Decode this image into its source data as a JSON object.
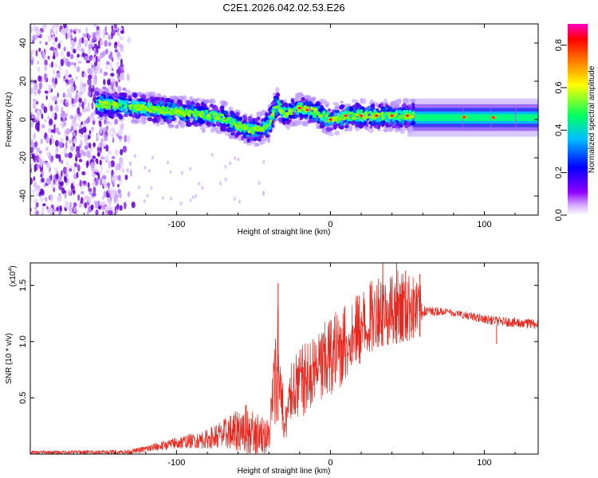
{
  "title": "C2E1.2026.042.02.53.E26",
  "chart_data": [
    {
      "type": "heatmap",
      "name": "spectrogram",
      "xlabel": "Height of straight line (km)",
      "ylabel": "Frequency (Hz)",
      "xlim": [
        -195,
        135
      ],
      "ylim": [
        -50,
        50
      ],
      "x_ticks": [
        -100,
        0,
        100
      ],
      "y_ticks": [
        -40,
        -20,
        0,
        20,
        40
      ],
      "colorbar": {
        "label": "Normalized spectral amplitude",
        "range": [
          0,
          0.9
        ],
        "ticks": [
          0.0,
          0.2,
          0.4,
          0.6,
          0.8
        ],
        "colormap": [
          "#ffffff",
          "#9000ff",
          "#0000ff",
          "#00c0ff",
          "#00ff60",
          "#ffff00",
          "#ff8000",
          "#ff0000",
          "#ff00c0"
        ]
      },
      "noise_region_x": [
        -195,
        -135
      ],
      "band_start_x": 50,
      "band_freq_hz": 1,
      "ridge": {
        "x": [
          -150,
          -130,
          -110,
          -90,
          -70,
          -60,
          -50,
          -40,
          -35,
          -30,
          -20,
          -10,
          0,
          10,
          30,
          50,
          100,
          135
        ],
        "y": [
          8,
          7,
          5,
          3,
          1,
          -3,
          -6,
          -3,
          8,
          3,
          6,
          4,
          0,
          2,
          2,
          2,
          1,
          1
        ]
      },
      "peaks_x": [
        -20,
        -15,
        0,
        10,
        20,
        30,
        40,
        50,
        87,
        106
      ]
    },
    {
      "type": "line",
      "name": "snr",
      "xlabel": "Height of straight line (km)",
      "ylabel": "SNR (10 * v/v)",
      "y_multiplier": "(x10",
      "y_multiplier_exp": "4",
      "y_multiplier_close": ")",
      "xlim": [
        -195,
        135
      ],
      "ylim": [
        0,
        1.7
      ],
      "x_ticks": [
        -100,
        0,
        100
      ],
      "y_ticks": [
        0.5,
        1.0,
        1.5
      ],
      "y_tick_labels": [
        "0.5",
        "1.0",
        "1.5"
      ],
      "envelope": {
        "x": [
          -195,
          -130,
          -100,
          -80,
          -65,
          -55,
          -40,
          -34,
          -30,
          -25,
          -20,
          -10,
          0,
          20,
          30,
          50,
          59,
          60,
          75,
          100,
          110,
          135
        ],
        "lo": [
          0.0,
          0.0,
          0.05,
          0.05,
          0.05,
          0.0,
          0.0,
          0.3,
          0.0,
          0.35,
          0.3,
          0.45,
          0.5,
          0.8,
          0.95,
          1.0,
          1.05,
          1.22,
          1.24,
          1.16,
          1.14,
          1.11
        ],
        "hi": [
          0.03,
          0.04,
          0.15,
          0.22,
          0.35,
          0.45,
          0.3,
          1.52,
          0.4,
          0.85,
          0.95,
          1.05,
          1.25,
          1.45,
          1.6,
          1.65,
          1.5,
          1.32,
          1.3,
          1.24,
          1.22,
          1.2
        ]
      },
      "spikes": [
        {
          "x": -34,
          "y": 1.52
        },
        {
          "x": 34,
          "y": 1.7
        },
        {
          "x": 43,
          "y": 1.7
        },
        {
          "x": 58,
          "y": 1.6
        },
        {
          "x": 108,
          "y": 0.98
        }
      ],
      "color": "#e8281f"
    }
  ]
}
